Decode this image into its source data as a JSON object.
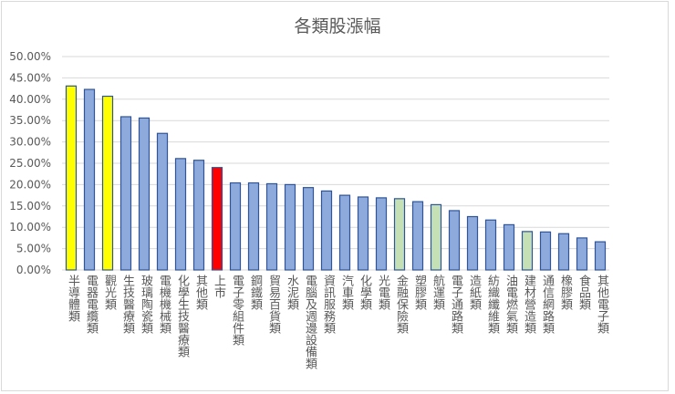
{
  "chart_data": {
    "type": "bar",
    "title": "各類股漲幅",
    "xlabel": "",
    "ylabel": "",
    "ylim": [
      0,
      50
    ],
    "yticks": [
      "0.00%",
      "5.00%",
      "10.00%",
      "15.00%",
      "20.00%",
      "25.00%",
      "30.00%",
      "35.00%",
      "40.00%",
      "45.00%",
      "50.00%"
    ],
    "grid": true,
    "legend": "none",
    "categories": [
      "半導體類",
      "電器電纜類",
      "觀光類",
      "生技醫療類",
      "玻璃陶瓷類",
      "電機機械類",
      "化學生技醫療類",
      "其他類",
      "上市",
      "電子零組件類",
      "鋼鐵類",
      "貿易百貨類",
      "水泥類",
      "電腦及週邊設備類",
      "資訊服務類",
      "汽車類",
      "化學類",
      "光電類",
      "金融保險類",
      "塑膠類",
      "航運類",
      "電子通路類",
      "造紙類",
      "紡織纖維類",
      "油電燃氣類",
      "建材營造類",
      "通信網路類",
      "橡膠類",
      "食品類",
      "其他電子類"
    ],
    "values": [
      43.1,
      42.3,
      40.7,
      35.9,
      35.6,
      32.0,
      26.1,
      25.7,
      24.0,
      20.4,
      20.4,
      20.2,
      20.0,
      19.3,
      18.5,
      17.5,
      17.1,
      16.9,
      16.7,
      16.0,
      15.3,
      13.9,
      12.5,
      11.7,
      10.6,
      9.0,
      8.9,
      8.5,
      7.5,
      6.6
    ],
    "highlight": {
      "半導體類": "yellow",
      "觀光類": "yellow",
      "上市": "red",
      "金融保險類": "green",
      "航運類": "green",
      "建材營造類": "green"
    }
  },
  "colors": {
    "default": "#8ea9db",
    "border": "#2f5597",
    "yellow": "#ffff00",
    "red": "#ff0000",
    "green": "#c5e0b4",
    "grid": "#d9d9d9"
  }
}
